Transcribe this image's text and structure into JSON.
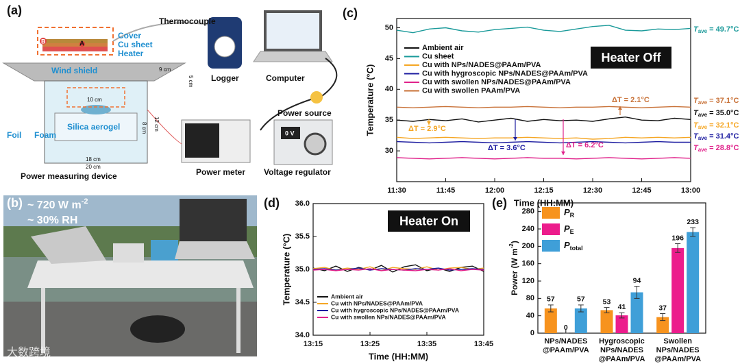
{
  "panel_labels": [
    "(a)",
    "(b)",
    "(c)",
    "(d)",
    "(e)"
  ],
  "watermark": "大数跨境",
  "diagram": {
    "thermocouple": "Thermocouple",
    "cover": "Cover",
    "cu_sheet": "Cu sheet",
    "heater": "Heater",
    "point_a": "A",
    "point_b": "B",
    "wind_shield": "Wind shield",
    "dim_9": "9 cm",
    "dim_5": "5 cm",
    "dim_10": "10 cm",
    "dim_12": "12 cm",
    "dim_8": "8 cm",
    "silica": "Silica aerogel",
    "foil": "Foil",
    "foam": "Foam",
    "dim_18": "18 cm",
    "dim_20": "20 cm",
    "device": "Power measuring device",
    "logger": "Logger",
    "computer": "Computer",
    "power_source": "Power source",
    "power_meter": "Power meter",
    "voltage_regulator": "Voltage regulator",
    "display": "0 V"
  },
  "photo": {
    "irradiance": {
      "text": "~ 720  W m",
      "sup": "-2"
    },
    "humidity": "~ 30% RH"
  },
  "chart_data": [
    {
      "type": "line",
      "status": "Heater Off",
      "xlabel": "Time (HH:MM)",
      "ylabel": "Temperature (°C)",
      "categories": [
        "11:30",
        null,
        null,
        "11:45",
        null,
        null,
        "12:00",
        null,
        null,
        "12:15",
        null,
        null,
        "12:30",
        null,
        null,
        "12:45",
        null,
        null,
        "13:00"
      ],
      "ylim": [
        25,
        51.5
      ],
      "yticks": [
        30,
        35,
        40,
        45,
        50
      ],
      "legend": "upper left",
      "series": [
        {
          "name": "Ambient air",
          "color": "#111111",
          "values": [
            35.0,
            34.8,
            35.1,
            34.9,
            35.2,
            34.7,
            35.0,
            35.3,
            34.8,
            35.1,
            34.9,
            35.0,
            34.8,
            35.2,
            35.5,
            35.0,
            34.9,
            35.3,
            35.1
          ],
          "annotation": {
            "main": "T",
            "sub": "ave",
            "text": " = 35.0°C"
          }
        },
        {
          "name": "Cu sheet",
          "color": "#1a9a9a",
          "values": [
            49.6,
            49.2,
            49.8,
            50.0,
            49.5,
            49.3,
            49.7,
            49.9,
            50.1,
            49.6,
            49.4,
            49.8,
            50.2,
            50.4,
            49.6,
            49.5,
            49.8,
            49.7,
            49.9
          ],
          "annotation": {
            "main": "T",
            "sub": "ave",
            "text": " = 49.7°C"
          }
        },
        {
          "name": "Cu with NPs/NADES@PAAm/PVA",
          "color": "#f5a623",
          "values": [
            32.2,
            32.0,
            32.1,
            32.2,
            32.1,
            32.0,
            32.1,
            32.1,
            32.2,
            32.1,
            32.0,
            32.1,
            31.9,
            32.0,
            32.2,
            32.1,
            32.2,
            32.1,
            32.2
          ],
          "annotation": {
            "main": "T",
            "sub": "ave",
            "text": " = 32.1°C"
          }
        },
        {
          "name": "Cu with hygroscopic NPs/NADES@PAAm/PVA",
          "color": "#1c1ca0",
          "values": [
            31.5,
            31.4,
            31.3,
            31.4,
            31.5,
            31.4,
            31.3,
            31.4,
            31.5,
            31.4,
            31.3,
            31.4,
            31.5,
            31.4,
            31.3,
            31.4,
            31.5,
            31.4,
            31.4
          ],
          "annotation": {
            "main": "T",
            "sub": "ave",
            "text": " = 31.4°C"
          }
        },
        {
          "name": "Cu with swollen NPs/NADES@PAAm/PVA",
          "color": "#e0218a",
          "values": [
            28.9,
            28.8,
            28.7,
            28.8,
            28.9,
            28.8,
            28.7,
            28.8,
            28.9,
            28.8,
            28.8,
            28.7,
            28.8,
            28.9,
            28.8,
            28.7,
            28.8,
            28.9,
            28.8
          ],
          "annotation": {
            "main": "T",
            "sub": "ave",
            "text": " = 28.8°C"
          }
        },
        {
          "name": "Cu with swollen PAAm/PVA",
          "color": "#c87137",
          "values": [
            37.1,
            37.0,
            37.1,
            37.2,
            37.1,
            37.0,
            37.1,
            37.1,
            37.2,
            37.1,
            37.0,
            37.1,
            37.1,
            37.2,
            37.1,
            37.0,
            37.1,
            37.2,
            37.1
          ],
          "annotation": {
            "main": "T",
            "sub": "ave",
            "text": " = 37.1°C"
          }
        }
      ],
      "annotations": [
        "ΔT = 2.1°C",
        "ΔT = 2.9°C",
        "ΔT = 3.6°C",
        "ΔT = 6.2°C"
      ]
    },
    {
      "type": "line",
      "status": "Heater On",
      "xlabel": "Time (HH:MM)",
      "ylabel": "Temperature (°C)",
      "categories": [
        "13:15",
        null,
        null,
        null,
        null,
        "13:25",
        null,
        null,
        null,
        null,
        "13:35",
        null,
        null,
        null,
        null,
        "13:45"
      ],
      "ylim": [
        34,
        36
      ],
      "yticks": [
        {
          "value": 34,
          "label": "34.0"
        },
        {
          "value": 34.5,
          "label": "34.5"
        },
        {
          "value": 35,
          "label": "35.0"
        },
        {
          "value": 35.5,
          "label": "35.5"
        },
        {
          "value": 36,
          "label": "36.0"
        }
      ],
      "legend": "lower left",
      "series": [
        {
          "name": "Ambient air",
          "color": "#111111",
          "values": [
            35.02,
            34.98,
            35.05,
            34.97,
            35.03,
            34.99,
            35.06,
            34.96,
            35.04,
            35.07,
            34.98,
            35.02,
            34.97,
            35.03,
            35.05,
            34.97
          ]
        },
        {
          "name": "Cu with NPs/NADES@PAAm/PVA",
          "color": "#f5a623",
          "values": [
            35.01,
            35.03,
            34.99,
            35.02,
            35.0,
            35.04,
            34.98,
            35.03,
            35.01,
            35.0,
            35.04,
            34.99,
            35.02,
            35.03,
            35.0,
            35.02
          ]
        },
        {
          "name": "Cu with hygroscopic NPs/NADES@PAAm/PVA",
          "color": "#1c1ca0",
          "values": [
            35.0,
            35.01,
            34.99,
            35.0,
            35.02,
            34.99,
            35.01,
            35.0,
            34.99,
            35.01,
            35.0,
            35.02,
            34.99,
            35.0,
            35.01,
            35.0
          ]
        },
        {
          "name": "Cu with swollen NPs/NADES@PAAm/PVA",
          "color": "#e0218a",
          "values": [
            34.99,
            35.0,
            34.98,
            35.0,
            34.99,
            35.01,
            34.98,
            35.0,
            34.99,
            34.98,
            35.0,
            34.99,
            35.01,
            34.98,
            35.0,
            34.99
          ]
        }
      ]
    },
    {
      "type": "bar",
      "ylabel": {
        "text": "Power (W m",
        "sup": "-2",
        "end": ")"
      },
      "categories": [
        [
          "NPs/NADES",
          "@PAAm/PVA"
        ],
        [
          "Hygroscopic",
          "NPs/NADES",
          "@PAAm/PVA"
        ],
        [
          "Swollen",
          "NPs/NADES",
          "@PAAm/PVA"
        ]
      ],
      "ylim": [
        0,
        300
      ],
      "yticks": [
        0,
        40,
        80,
        120,
        160,
        200,
        240,
        280
      ],
      "legend": "upper left",
      "series": [
        {
          "name": "P",
          "sub": "R",
          "color": "#f7931e",
          "values": [
            57,
            53,
            37
          ],
          "errors": [
            8,
            6,
            8
          ]
        },
        {
          "name": "P",
          "sub": "E",
          "color": "#ec1c8c",
          "values": [
            0,
            41,
            196
          ],
          "errors": [
            0,
            6,
            10
          ]
        },
        {
          "name": "P",
          "sub": "total",
          "color": "#3f9fd8",
          "values": [
            57,
            94,
            233
          ],
          "errors": [
            8,
            14,
            10
          ]
        }
      ]
    }
  ]
}
